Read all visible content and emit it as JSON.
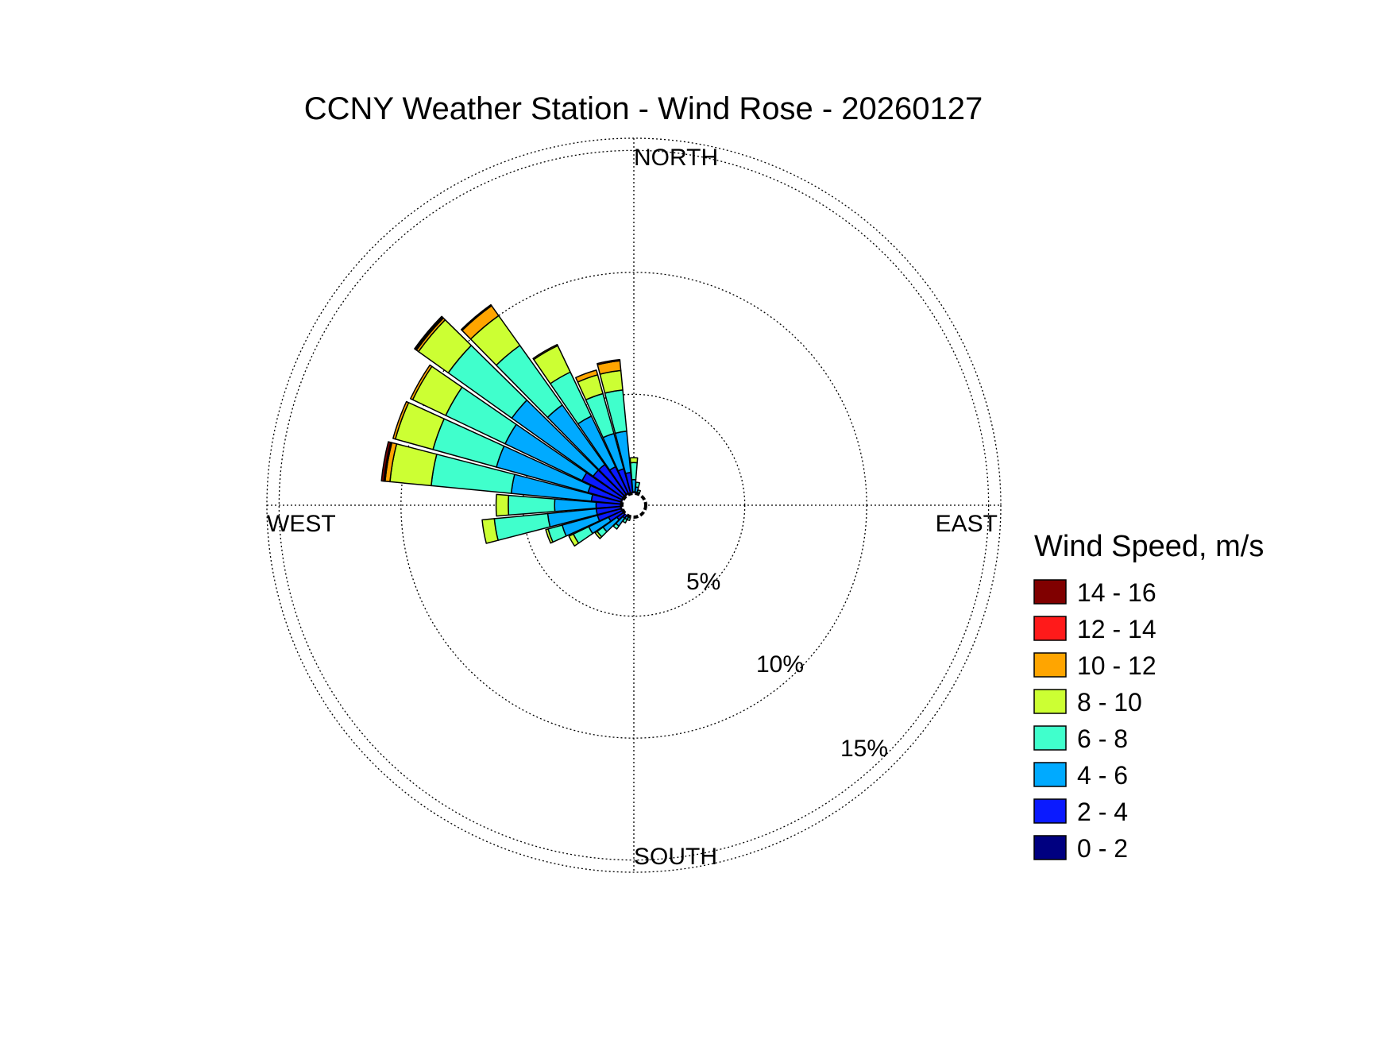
{
  "chart_data": {
    "type": "wind-rose",
    "title": "CCNY Weather Station - Wind Rose - 20260127",
    "directions": {
      "north": "NORTH",
      "east": "EAST",
      "south": "SOUTH",
      "west": "WEST"
    },
    "rings": [
      {
        "value": 5,
        "label": "5%"
      },
      {
        "value": 10,
        "label": "10%"
      },
      {
        "value": 15,
        "label": "15%"
      }
    ],
    "rmax": 15.5,
    "origin_offset": 0.45,
    "grid": true,
    "legend": {
      "title": "Wind Speed, m/s",
      "placement": "right",
      "entries": [
        {
          "label": "14 - 16",
          "color": "#800000"
        },
        {
          "label": "12 - 14",
          "color": "#ff1a1a"
        },
        {
          "label": "10 - 12",
          "color": "#ffa500"
        },
        {
          "label": "8 - 10",
          "color": "#ccff33"
        },
        {
          "label": "6 - 8",
          "color": "#40ffcc"
        },
        {
          "label": "4 - 6",
          "color": "#00aaff"
        },
        {
          "label": "2 - 4",
          "color": "#0a1aff"
        },
        {
          "label": "0 - 2",
          "color": "#000080"
        }
      ]
    },
    "bin_order": [
      "0 - 2",
      "2 - 4",
      "4 - 6",
      "6 - 8",
      "8 - 10",
      "10 - 12",
      "12 - 14",
      "14 - 16"
    ],
    "sector_width_deg": 9,
    "bin_colors": [
      "#000080",
      "#0a1aff",
      "#00aaff",
      "#40ffcc",
      "#ccff33",
      "#ffa500",
      "#ff1a1a",
      "#800000"
    ],
    "sectors": [
      {
        "direction_deg": 0,
        "cumulative": [
          0.7,
          1.0,
          1.5,
          2.2,
          2.4
        ]
      },
      {
        "direction_deg": 10,
        "cumulative": [
          0.7,
          1.0,
          1.2,
          1.4
        ]
      },
      {
        "direction_deg": 20,
        "cumulative": [
          0.7,
          0.9,
          1.0,
          1.1
        ]
      },
      {
        "direction_deg": 80,
        "cumulative": [
          0.5,
          0.6
        ]
      },
      {
        "direction_deg": 190,
        "cumulative": [
          0.6,
          0.75
        ]
      },
      {
        "direction_deg": 200,
        "cumulative": [
          0.6,
          0.85,
          1.0,
          1.1
        ]
      },
      {
        "direction_deg": 210,
        "cumulative": [
          0.6,
          0.9,
          1.1,
          1.25
        ]
      },
      {
        "direction_deg": 220,
        "cumulative": [
          0.7,
          1.1,
          1.5,
          1.65
        ]
      },
      {
        "direction_deg": 230,
        "cumulative": [
          0.8,
          1.3,
          2.0,
          2.3,
          2.4
        ]
      },
      {
        "direction_deg": 240,
        "cumulative": [
          0.9,
          1.6,
          2.5,
          3.2,
          3.4
        ]
      },
      {
        "direction_deg": 250,
        "cumulative": [
          1.0,
          2.0,
          3.5,
          4.1,
          4.2
        ]
      },
      {
        "direction_deg": 260,
        "cumulative": [
          1.0,
          2.0,
          4.0,
          6.2,
          6.7
        ]
      },
      {
        "direction_deg": 270,
        "cumulative": [
          1.0,
          2.0,
          3.7,
          5.6,
          6.1
        ]
      },
      {
        "direction_deg": 280,
        "cumulative": [
          1.0,
          2.2,
          5.5,
          8.8,
          10.5,
          10.7,
          10.75,
          10.85
        ]
      },
      {
        "direction_deg": 290,
        "cumulative": [
          1.0,
          2.4,
          6.3,
          9.0,
          10.6,
          10.7
        ]
      },
      {
        "direction_deg": 300,
        "cumulative": [
          1.0,
          2.8,
          6.3,
          9.0,
          10.5,
          10.6
        ]
      },
      {
        "direction_deg": 310,
        "cumulative": [
          1.0,
          2.5,
          6.6,
          9.8,
          11.3,
          11.4,
          11.45,
          11.5
        ]
      },
      {
        "direction_deg": 320,
        "cumulative": [
          1.0,
          2.5,
          5.5,
          8.5,
          10.0,
          10.5,
          10.55
        ]
      },
      {
        "direction_deg": 330,
        "cumulative": [
          1.0,
          2.2,
          4.5,
          6.5,
          7.7,
          7.75
        ]
      },
      {
        "direction_deg": 340,
        "cumulative": [
          0.9,
          2.0,
          3.5,
          5.2,
          6.0,
          6.2
        ]
      },
      {
        "direction_deg": 350,
        "cumulative": [
          0.9,
          1.8,
          3.5,
          5.2,
          6.0,
          6.4,
          6.45
        ]
      }
    ]
  }
}
